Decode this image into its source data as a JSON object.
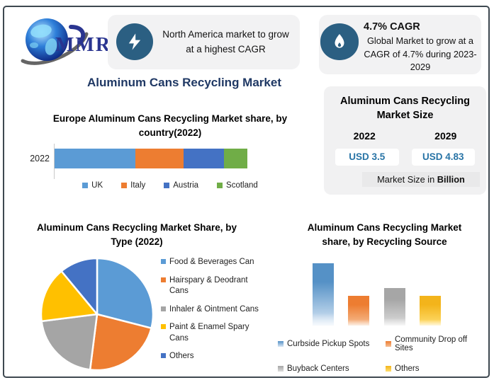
{
  "brand": {
    "logo_text": "MMR"
  },
  "callouts": [
    {
      "icon": "lightning-bolt",
      "text": "North America market to grow at a highest CAGR"
    },
    {
      "icon": "flame",
      "title": "4.7% CAGR",
      "text": "Global Market to grow at a CAGR of 4.7% during 2023-2029"
    }
  ],
  "main_title": "Aluminum Cans Recycling Market",
  "market_size_panel": {
    "title": "Aluminum Cans Recycling Market Size",
    "columns": [
      {
        "year": "2022",
        "value": "USD 3.5"
      },
      {
        "year": "2029",
        "value": "USD 4.83"
      }
    ],
    "note_prefix": "Market Size in ",
    "note_bold": "Billion"
  },
  "colors": {
    "accent_navy": "#1F3864",
    "badge_teal": "#2B5F82",
    "card_gray": "#F2F2F3",
    "value_teal": "#2874A6",
    "page_border": "#3E4850"
  },
  "chart_data": [
    {
      "type": "bar",
      "variant": "horizontal_stacked",
      "title": "Europe Aluminum Cans Recycling Market share, by country(2022)",
      "categories": [
        "2022"
      ],
      "series": [
        {
          "name": "UK",
          "value": 42,
          "color": "#5B9BD5"
        },
        {
          "name": "Italy",
          "value": 25,
          "color": "#ED7D31"
        },
        {
          "name": "Austria",
          "value": 21,
          "color": "#4472C4"
        },
        {
          "name": "Scotland",
          "value": 12,
          "color": "#70AD47"
        }
      ],
      "unit": "% share, estimated from segment lengths",
      "legend_position": "bottom",
      "grid": false
    },
    {
      "type": "pie",
      "title": "Aluminum Cans Recycling Market Share, by Type (2022)",
      "slices": [
        {
          "label": "Food & Beverages Can",
          "value": 29,
          "color": "#5B9BD5"
        },
        {
          "label": "Hairspary & Deodrant Cans",
          "value": 23,
          "color": "#ED7D31"
        },
        {
          "label": "Inhaler & Ointment Cans",
          "value": 21,
          "color": "#A5A5A5"
        },
        {
          "label": "Paint & Enamel Spary Cans",
          "value": 16,
          "color": "#FFC000"
        },
        {
          "label": "Others",
          "value": 11,
          "color": "#4472C4"
        }
      ],
      "start_angle_deg": 0,
      "direction": "clockwise",
      "unit": "% share, estimated from slice angles",
      "legend_position": "right"
    },
    {
      "type": "bar",
      "variant": "vertical",
      "title": "Aluminum Cans Recycling Market share, by Recycling Source",
      "categories": [
        "Curbside Pickup Spots",
        "Community Drop off Sites",
        "Buyback Centers",
        "Others"
      ],
      "values": [
        100,
        48,
        60,
        48
      ],
      "colors": [
        [
          "#5591C6",
          "#D9E7F5"
        ],
        [
          "#ED7D31",
          "#F6BE93"
        ],
        [
          "#A6A6A6",
          "#DCDCDC"
        ],
        [
          "#F3B41B",
          "#FFDE70"
        ]
      ],
      "unit": "relative height (no value axis shown)",
      "legend_position": "bottom",
      "grid": false
    }
  ]
}
